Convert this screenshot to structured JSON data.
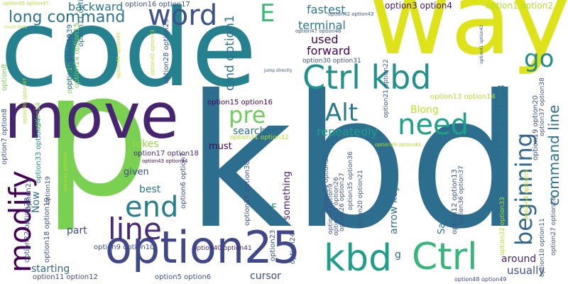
{
  "words": [
    {
      "text": "kbd",
      "color": "#2d6e8e"
    },
    {
      "text": "code",
      "color": "#26818e"
    },
    {
      "text": "way",
      "color": "#dde318"
    },
    {
      "text": "p",
      "color": "#7ad151"
    },
    {
      "text": "move",
      "color": "#46246f"
    },
    {
      "text": "option25",
      "color": "#3f4889"
    },
    {
      "text": "Ctrl kbd",
      "color": "#21918c"
    },
    {
      "text": "Ctrl",
      "color": "#35b779"
    },
    {
      "text": "kbd",
      "color": "#1f9e89"
    },
    {
      "text": "word",
      "color": "#3b528b"
    },
    {
      "text": "line",
      "color": "#482878"
    },
    {
      "text": "end",
      "color": "#277f8e"
    },
    {
      "text": "need",
      "color": "#1fa088"
    },
    {
      "text": "Alt",
      "color": "#2a788e"
    },
    {
      "text": "go",
      "color": "#238a8d"
    },
    {
      "text": "E",
      "color": "#3cbb75"
    },
    {
      "text": "pre",
      "color": "#6ece58"
    },
    {
      "text": "modify",
      "color": "#440154"
    },
    {
      "text": "beginning",
      "color": "#31688e"
    },
    {
      "text": "long command",
      "color": "#2c728e"
    },
    {
      "text": "command line",
      "color": "#2c728e"
    },
    {
      "text": "repeatedly",
      "color": "#1f9e89"
    },
    {
      "text": "backward",
      "color": "#2a788e"
    },
    {
      "text": "fastest",
      "color": "#2a788e"
    },
    {
      "text": "terminal",
      "color": "#2a788e"
    },
    {
      "text": "forward",
      "color": "#440154"
    },
    {
      "text": "used",
      "color": "#440154"
    },
    {
      "text": "cmd option1",
      "color": "#2c728e"
    },
    {
      "text": "option3 option4",
      "color": "#481567"
    },
    {
      "text": "option1 option2",
      "color": "#b5de2b"
    },
    {
      "text": "Blong",
      "color": "#bddf26"
    },
    {
      "text": "search",
      "color": "#2d708e"
    },
    {
      "text": "takes",
      "color": "#95d840"
    },
    {
      "text": "given",
      "color": "#3e4a89"
    },
    {
      "text": "best",
      "color": "#2a788e"
    },
    {
      "text": "must",
      "color": "#440154"
    },
    {
      "text": "something",
      "color": "#481c6e"
    },
    {
      "text": "arrow key",
      "color": "#2d708e"
    },
    {
      "text": "F",
      "color": "#21918c"
    },
    {
      "text": "Say",
      "color": "#2a788e"
    },
    {
      "text": "around",
      "color": "#482475"
    },
    {
      "text": "usually",
      "color": "#3b528b"
    },
    {
      "text": "cursor",
      "color": "#3e4a89"
    },
    {
      "text": "starting",
      "color": "#31688e"
    },
    {
      "text": "part",
      "color": "#3e4a89"
    },
    {
      "text": "Now",
      "color": "#2d708e"
    },
    {
      "text": "g",
      "color": "#31688e"
    },
    {
      "text": "option2 option3",
      "color": "#2a788e"
    },
    {
      "text": "option15 option16",
      "color": "#440154"
    },
    {
      "text": "option17 option18",
      "color": "#482878"
    },
    {
      "text": "option16 option17",
      "color": "#3b528b"
    },
    {
      "text": "option5 option6",
      "color": "#3b528b"
    },
    {
      "text": "option9 option10",
      "color": "#3b528b"
    },
    {
      "text": "option11 option12",
      "color": "#3e4a89"
    },
    {
      "text": "option40 option41",
      "color": "#482878"
    },
    {
      "text": "option48 option49",
      "color": "#3e4a89"
    },
    {
      "text": "option13 option14",
      "color": "#b5de2b"
    },
    {
      "text": "option30 option31",
      "color": "#3b528b"
    },
    {
      "text": "option31 option32",
      "color": "#b5de2b"
    },
    {
      "text": "option43 option44",
      "color": "#440154"
    },
    {
      "text": "option39 option40",
      "color": "#b5de2b"
    },
    {
      "text": "option42 option43",
      "color": "#3b528b"
    },
    {
      "text": "option47 option48",
      "color": "#3b528b"
    },
    {
      "text": "option45 option47",
      "color": "#b5de2b"
    },
    {
      "text": "much time",
      "color": "#b5de2b"
    },
    {
      "text": "jump directly",
      "color": "#3b528b"
    },
    {
      "text": "option8",
      "color": "#7ad151"
    },
    {
      "text": "option7 option8",
      "color": "#3b528b"
    },
    {
      "text": "option39",
      "color": "#3b528b"
    },
    {
      "text": "option15",
      "color": "#7ad151"
    },
    {
      "text": "option14 option15",
      "color": "#7ad151"
    },
    {
      "text": "option38 option39",
      "color": "#2d708e"
    },
    {
      "text": "option11 option12",
      "color": "#2d708e"
    },
    {
      "text": "option44 option45",
      "color": "#bddf26"
    },
    {
      "text": "option28 option29",
      "color": "#3b528b"
    },
    {
      "text": "option24",
      "color": "#7ad151"
    },
    {
      "text": "option33 option34",
      "color": "#21918c"
    },
    {
      "text": "option42 option43",
      "color": "#b5de2b"
    },
    {
      "text": "option46 option47",
      "color": "#b5de2b"
    },
    {
      "text": "option23",
      "color": "#3b528b"
    },
    {
      "text": "option19",
      "color": "#3b528b"
    },
    {
      "text": "option18 option19",
      "color": "#3b528b"
    },
    {
      "text": "option22 option23",
      "color": "#3b528b"
    },
    {
      "text": "option45 option46",
      "color": "#b5de2b"
    },
    {
      "text": "option6 option7",
      "color": "#3b528b"
    },
    {
      "text": "option29 option30",
      "color": "#3b528b"
    },
    {
      "text": "option23",
      "color": "#3b528b"
    },
    {
      "text": "option24",
      "color": "#3b528b"
    },
    {
      "text": "option34 option35",
      "color": "#3b528b"
    },
    {
      "text": "option8 option9",
      "color": "#3b528b"
    },
    {
      "text": "option26 option27",
      "color": "#3b528b"
    },
    {
      "text": "option25 option26",
      "color": "#3b528b"
    },
    {
      "text": "option35 option36",
      "color": "#3b528b"
    },
    {
      "text": "option20 option21",
      "color": "#3b528b"
    },
    {
      "text": "option21 option22",
      "color": "#3b528b"
    },
    {
      "text": "option12 option13",
      "color": "#3b528b"
    },
    {
      "text": "option36 option37",
      "color": "#3b528b"
    },
    {
      "text": "option32 option33",
      "color": "#b5de2b"
    },
    {
      "text": "option4 option5",
      "color": "#bddf26"
    },
    {
      "text": "option10 option11",
      "color": "#3b528b"
    },
    {
      "text": "option19 option20",
      "color": "#3b528b"
    },
    {
      "text": "option37 option38",
      "color": "#3b528b"
    },
    {
      "text": "option27 option28",
      "color": "#3b528b"
    },
    {
      "text": "option41 option42",
      "color": "#3b528b"
    }
  ]
}
